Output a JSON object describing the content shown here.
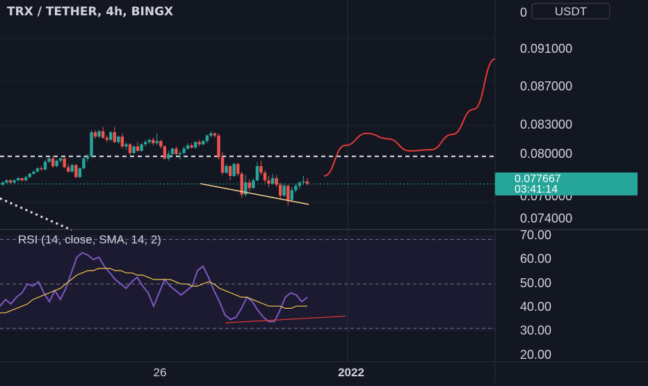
{
  "header": {
    "title": "TRX / TETHER, 4h, BINGX",
    "currency_badge": "USDT"
  },
  "price_axis": {
    "top_partial": "0",
    "ticks": [
      "0.091000",
      "0.087000",
      "0.083000",
      "0.080000",
      "0.076000",
      "0.074000"
    ],
    "current_price": "0.077667",
    "countdown": "03:41:14"
  },
  "rsi": {
    "label": "RSI (14, close, SMA, 14, 2)",
    "ticks": [
      "70.00",
      "60.00",
      "50.00",
      "40.00",
      "30.00",
      "20.00"
    ]
  },
  "time_axis": {
    "labels": [
      "26",
      "2022"
    ]
  },
  "colors": {
    "background": "#131722",
    "up": "#26a69a",
    "down": "#ef5350",
    "rsi_line": "#7e57c2",
    "rsi_sma": "#f2c84b",
    "projection": "#e53935",
    "support_trend": "#f5d08a",
    "current_price_badge": "#26a69a"
  },
  "chart_data": [
    {
      "type": "candlestick",
      "title": "TRX / TETHER, 4h, BINGX",
      "ylim": [
        0.0735,
        0.0945
      ],
      "y_ticks": [
        0.091,
        0.087,
        0.083,
        0.08,
        0.076,
        0.074
      ],
      "candles": [
        [
          0.0776,
          0.0779,
          0.0775,
          0.0778
        ],
        [
          0.0778,
          0.0781,
          0.0777,
          0.078
        ],
        [
          0.078,
          0.0781,
          0.0777,
          0.0778
        ],
        [
          0.0778,
          0.0781,
          0.0777,
          0.078
        ],
        [
          0.078,
          0.0783,
          0.0779,
          0.0782
        ],
        [
          0.0782,
          0.0782,
          0.0779,
          0.078
        ],
        [
          0.078,
          0.0784,
          0.0779,
          0.0783
        ],
        [
          0.0783,
          0.0787,
          0.0782,
          0.0786
        ],
        [
          0.0786,
          0.0789,
          0.0785,
          0.0788
        ],
        [
          0.0788,
          0.0792,
          0.0787,
          0.0791
        ],
        [
          0.0791,
          0.0793,
          0.0789,
          0.079
        ],
        [
          0.079,
          0.0799,
          0.0789,
          0.0797
        ],
        [
          0.0797,
          0.0801,
          0.0796,
          0.08
        ],
        [
          0.08,
          0.0802,
          0.0791,
          0.0793
        ],
        [
          0.0793,
          0.0799,
          0.0792,
          0.0798
        ],
        [
          0.0798,
          0.0801,
          0.0796,
          0.08
        ],
        [
          0.08,
          0.0801,
          0.0791,
          0.0792
        ],
        [
          0.0792,
          0.0795,
          0.0787,
          0.0788
        ],
        [
          0.0788,
          0.0795,
          0.0787,
          0.0794
        ],
        [
          0.0794,
          0.0795,
          0.0782,
          0.0783
        ],
        [
          0.0783,
          0.0792,
          0.0782,
          0.0791
        ],
        [
          0.0791,
          0.0802,
          0.079,
          0.08
        ],
        [
          0.08,
          0.0804,
          0.0797,
          0.0802
        ],
        [
          0.0802,
          0.0826,
          0.0801,
          0.0824
        ],
        [
          0.0824,
          0.0826,
          0.0818,
          0.082
        ],
        [
          0.082,
          0.0826,
          0.0819,
          0.0825
        ],
        [
          0.0825,
          0.0829,
          0.0818,
          0.0819
        ],
        [
          0.0819,
          0.0821,
          0.0815,
          0.0817
        ],
        [
          0.0817,
          0.0825,
          0.0816,
          0.0824
        ],
        [
          0.0824,
          0.0829,
          0.0814,
          0.0815
        ],
        [
          0.0815,
          0.0821,
          0.0813,
          0.082
        ],
        [
          0.082,
          0.0823,
          0.0809,
          0.0811
        ],
        [
          0.0811,
          0.0815,
          0.0808,
          0.0813
        ],
        [
          0.0813,
          0.0814,
          0.0803,
          0.0805
        ],
        [
          0.0805,
          0.0812,
          0.0804,
          0.0811
        ],
        [
          0.0811,
          0.0815,
          0.0806,
          0.0807
        ],
        [
          0.0807,
          0.0814,
          0.0806,
          0.0813
        ],
        [
          0.0813,
          0.0817,
          0.0811,
          0.0815
        ],
        [
          0.0815,
          0.0818,
          0.0813,
          0.0817
        ],
        [
          0.0817,
          0.0819,
          0.0812,
          0.0814
        ],
        [
          0.0814,
          0.0823,
          0.0812,
          0.0816
        ],
        [
          0.0816,
          0.0817,
          0.0809,
          0.0811
        ],
        [
          0.0811,
          0.0812,
          0.0799,
          0.08
        ],
        [
          0.08,
          0.0807,
          0.0798,
          0.0804
        ],
        [
          0.0804,
          0.081,
          0.0803,
          0.0809
        ],
        [
          0.0809,
          0.0811,
          0.0803,
          0.0804
        ],
        [
          0.0804,
          0.0807,
          0.0799,
          0.0805
        ],
        [
          0.0805,
          0.0811,
          0.0804,
          0.0809
        ],
        [
          0.0809,
          0.0814,
          0.0808,
          0.0812
        ],
        [
          0.0812,
          0.0814,
          0.0809,
          0.081
        ],
        [
          0.081,
          0.0816,
          0.0809,
          0.0815
        ],
        [
          0.0815,
          0.0817,
          0.0811,
          0.0813
        ],
        [
          0.0813,
          0.0817,
          0.0812,
          0.0816
        ],
        [
          0.0816,
          0.0822,
          0.0814,
          0.0821
        ],
        [
          0.0821,
          0.0825,
          0.0819,
          0.0823
        ],
        [
          0.0823,
          0.0824,
          0.0819,
          0.0821
        ],
        [
          0.0821,
          0.0823,
          0.0799,
          0.0801
        ],
        [
          0.0801,
          0.0806,
          0.0785,
          0.0787
        ],
        [
          0.0787,
          0.0795,
          0.0786,
          0.0793
        ],
        [
          0.0793,
          0.0794,
          0.078,
          0.0784
        ],
        [
          0.0784,
          0.0796,
          0.0783,
          0.0795
        ],
        [
          0.0795,
          0.0796,
          0.0784,
          0.0786
        ],
        [
          0.0786,
          0.0788,
          0.0764,
          0.0767
        ],
        [
          0.0767,
          0.0785,
          0.0765,
          0.0778
        ],
        [
          0.0778,
          0.0781,
          0.077,
          0.0773
        ],
        [
          0.0773,
          0.0782,
          0.0772,
          0.078
        ],
        [
          0.078,
          0.0797,
          0.0779,
          0.0793
        ],
        [
          0.0793,
          0.0798,
          0.0785,
          0.0787
        ],
        [
          0.0787,
          0.0789,
          0.0778,
          0.078
        ],
        [
          0.078,
          0.0784,
          0.0774,
          0.0777
        ],
        [
          0.0777,
          0.0786,
          0.0776,
          0.0782
        ],
        [
          0.0782,
          0.0785,
          0.0774,
          0.0776
        ],
        [
          0.0776,
          0.0778,
          0.0763,
          0.0766
        ],
        [
          0.0766,
          0.0777,
          0.0765,
          0.0775
        ],
        [
          0.0775,
          0.0776,
          0.0757,
          0.0762
        ],
        [
          0.0762,
          0.0774,
          0.0761,
          0.0771
        ],
        [
          0.0771,
          0.0777,
          0.0769,
          0.0775
        ],
        [
          0.0775,
          0.0779,
          0.0772,
          0.0778
        ],
        [
          0.0778,
          0.0784,
          0.0776,
          0.0779
        ],
        [
          0.0779,
          0.0782,
          0.0775,
          0.0777
        ]
      ],
      "horizontal_levels": [
        0.0802,
        0.07767
      ],
      "support_trendline": [
        [
          0.0777,
          0.0758
        ]
      ],
      "projection_path": [
        0.0784,
        0.0812,
        0.0823,
        0.0818,
        0.0807,
        0.0808,
        0.0822,
        0.0845,
        0.0891
      ],
      "current_price": 0.077667
    },
    {
      "type": "line",
      "title": "RSI (14, close, SMA, 14, 2)",
      "ylim": [
        15,
        72
      ],
      "y_ticks": [
        70,
        60,
        50,
        40,
        30,
        20
      ],
      "levels": [
        70,
        50,
        30
      ],
      "series": [
        {
          "name": "RSI",
          "values": [
            40,
            43,
            41,
            44,
            46,
            50,
            49,
            51,
            46,
            42,
            47,
            43,
            48,
            55,
            62,
            64,
            63,
            61,
            62,
            58,
            55,
            52,
            50,
            48,
            51,
            53,
            49,
            46,
            40,
            46,
            52,
            49,
            47,
            45,
            47,
            49,
            56,
            58,
            53,
            47,
            42,
            36,
            34,
            35,
            39,
            44,
            42,
            38,
            35,
            33,
            33,
            38,
            44,
            46,
            45,
            42,
            44
          ]
        },
        {
          "name": "SMA",
          "values": [
            37,
            37,
            38,
            39,
            40,
            41,
            43,
            44,
            45,
            46,
            47,
            48,
            50,
            52,
            54,
            55,
            56,
            56,
            57,
            57,
            57,
            56,
            56,
            55,
            55,
            54,
            54,
            53,
            52,
            52,
            52,
            52,
            51,
            50,
            50,
            49,
            49,
            50,
            51,
            50,
            48,
            47,
            46,
            45,
            44,
            44,
            43,
            42,
            41,
            40,
            40,
            40,
            39,
            39,
            40,
            40,
            40
          ]
        }
      ],
      "trendline": [
        [
          32.5,
          35.5
        ]
      ]
    }
  ]
}
